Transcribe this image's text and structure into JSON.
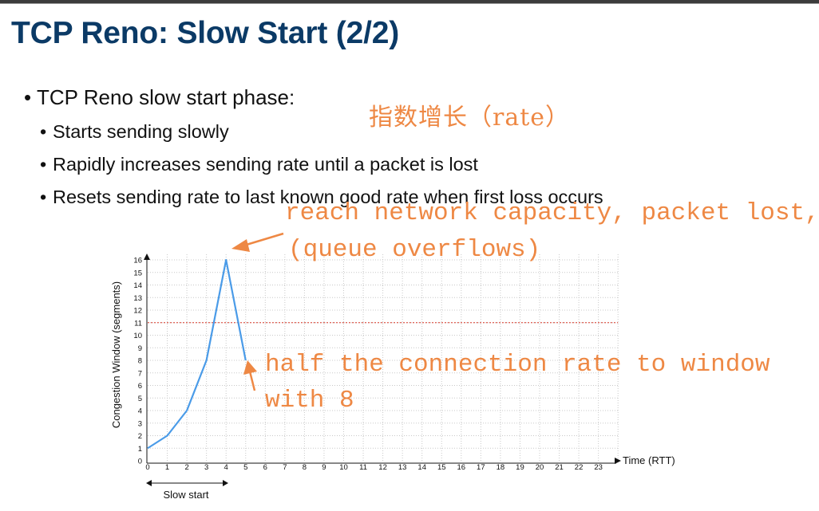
{
  "slide": {
    "title": "TCP Reno: Slow Start (2/2)",
    "bullets": [
      "TCP Reno slow start phase:",
      "Starts sending slowly",
      "Rapidly increases sending rate until a packet is lost",
      "Resets sending rate to last known good rate when first loss occurs"
    ]
  },
  "annotations": {
    "growth": "指数增长（rate）",
    "capacity_line1": "reach network capacity, packet lost,",
    "capacity_line2": "(queue overflows)",
    "halve_line1": "half the connection rate to window",
    "halve_line2": "with 8",
    "color": "#ee8844"
  },
  "chart_data": {
    "type": "line",
    "ylabel": "Congestion Window (segments)",
    "xlabel": "Time (RTT)",
    "phase_label": "Slow start",
    "x_ticks": [
      0,
      1,
      2,
      3,
      4,
      5,
      6,
      7,
      8,
      9,
      10,
      11,
      12,
      13,
      14,
      15,
      16,
      17,
      18,
      19,
      20,
      21,
      22,
      23
    ],
    "y_ticks": [
      0,
      1,
      2,
      3,
      4,
      5,
      6,
      7,
      8,
      9,
      10,
      11,
      12,
      13,
      14,
      15,
      16
    ],
    "xlim": [
      0,
      24
    ],
    "ylim": [
      0,
      16.5
    ],
    "series": [
      {
        "name": "cwnd",
        "x": [
          0,
          1,
          2,
          3,
          4,
          5
        ],
        "values": [
          1,
          2,
          4,
          8,
          16,
          8
        ],
        "color": "#4a9be8"
      }
    ],
    "threshold": {
      "value": 11,
      "color": "#d93a2a"
    },
    "grid": true
  }
}
